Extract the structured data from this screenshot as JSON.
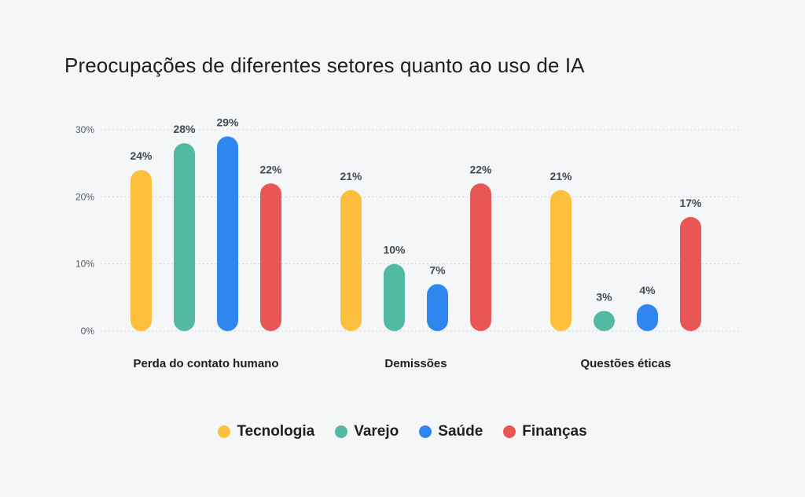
{
  "chart_data": {
    "type": "bar",
    "title": "Preocupações de diferentes setores quanto ao uso de IA",
    "categories": [
      "Perda do contato humano",
      "Demissões",
      "Questões éticas"
    ],
    "series": [
      {
        "name": "Tecnologia",
        "color": "#FDBF3E",
        "values": [
          24,
          21,
          21
        ]
      },
      {
        "name": "Varejo",
        "color": "#52B9A3",
        "values": [
          28,
          10,
          3
        ]
      },
      {
        "name": "Saúde",
        "color": "#2E86EE",
        "values": [
          29,
          7,
          4
        ]
      },
      {
        "name": "Finanças",
        "color": "#E85656",
        "values": [
          22,
          22,
          17
        ]
      }
    ],
    "y_ticks": [
      "0%",
      "10%",
      "20%",
      "30%"
    ],
    "ylim": [
      0,
      30
    ],
    "value_suffix": "%",
    "grid": true,
    "legend_position": "bottom-center"
  }
}
